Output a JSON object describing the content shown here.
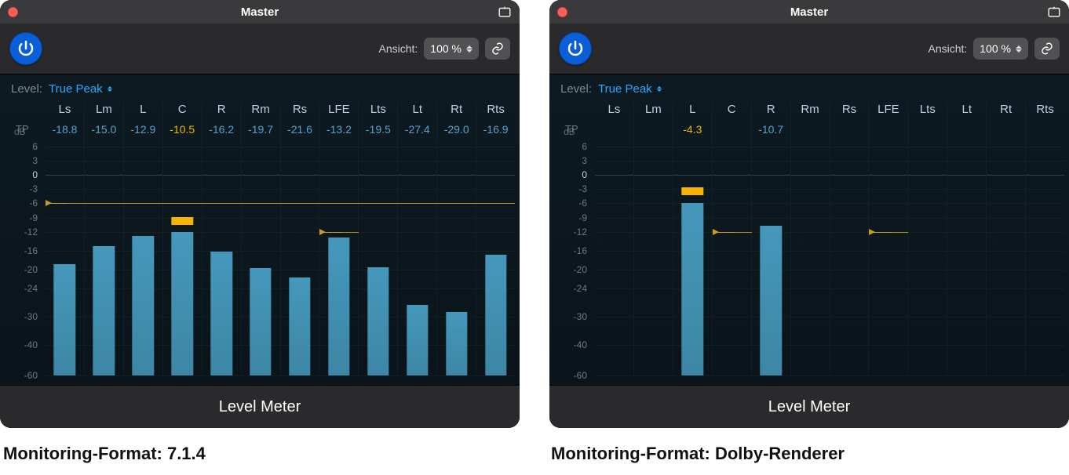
{
  "captions": {
    "left": "Monitoring-Format: 7.1.4",
    "right": "Monitoring-Format: Dolby-Renderer"
  },
  "shared": {
    "window_title": "Master",
    "ansicht_label": "Ansicht:",
    "zoom_value": "100 %",
    "level_label": "Level:",
    "level_mode": "True Peak",
    "tp_row_label": "TP",
    "db_row_label": "dB",
    "footer_label": "Level Meter",
    "y_ticks": [
      6,
      3,
      0,
      -3,
      -6,
      -9,
      -12,
      -16,
      -20,
      -24,
      -30,
      -40,
      -60
    ],
    "channels": [
      "Ls",
      "Lm",
      "L",
      "C",
      "R",
      "Rm",
      "Rs",
      "LFE",
      "Lts",
      "Lt",
      "Rt",
      "Rts"
    ],
    "colors": {
      "panel_bg": "#2a2a2c",
      "chart_bg_top": "#0d1a22",
      "chart_bg_bot": "#0a141a",
      "bar": "#4598bb",
      "peak": "#f6b400",
      "threshold": "#c99b22",
      "tp_text": "#5aa0c8",
      "tp_hot": "#f2b200",
      "accent": "#2aa8ff",
      "power": "#0a5fd9"
    }
  },
  "left": {
    "tp": {
      "Ls": "-18.8",
      "Lm": "-15.0",
      "L": "-12.9",
      "C": "-10.5",
      "R": "-16.2",
      "Rm": "-19.7",
      "Rs": "-21.6",
      "LFE": "-13.2",
      "Lts": "-19.5",
      "Lt": "-27.4",
      "Rt": "-29.0",
      "Rts": "-16.9"
    },
    "tp_hot": [
      "C"
    ],
    "bars_db": {
      "Ls": -18.8,
      "Lm": -15.0,
      "L": -12.9,
      "C": -12.0,
      "R": -16.2,
      "Rm": -19.7,
      "Rs": -21.6,
      "LFE": -13.2,
      "Lts": -19.5,
      "Lt": -27.4,
      "Rt": -29.0,
      "Rts": -16.9
    },
    "peaks_db": {
      "C": -10.5
    },
    "thresholds": [
      {
        "db": -6,
        "span": [
          "Ls",
          "Rts"
        ]
      },
      {
        "db": -12,
        "span": [
          "LFE",
          "LFE"
        ]
      }
    ]
  },
  "right": {
    "tp": {
      "Ls": "",
      "Lm": "",
      "L": "-4.3",
      "C": "",
      "R": "-10.7",
      "Rm": "",
      "Rs": "",
      "LFE": "",
      "Lts": "",
      "Lt": "",
      "Rt": "",
      "Rts": ""
    },
    "tp_hot": [
      "L"
    ],
    "bars_db": {
      "L": -6.0,
      "R": -10.7
    },
    "peaks_db": {
      "L": -4.3
    },
    "thresholds": [
      {
        "db": -12,
        "span": [
          "C",
          "C"
        ]
      },
      {
        "db": -12,
        "span": [
          "LFE",
          "LFE"
        ]
      }
    ]
  }
}
